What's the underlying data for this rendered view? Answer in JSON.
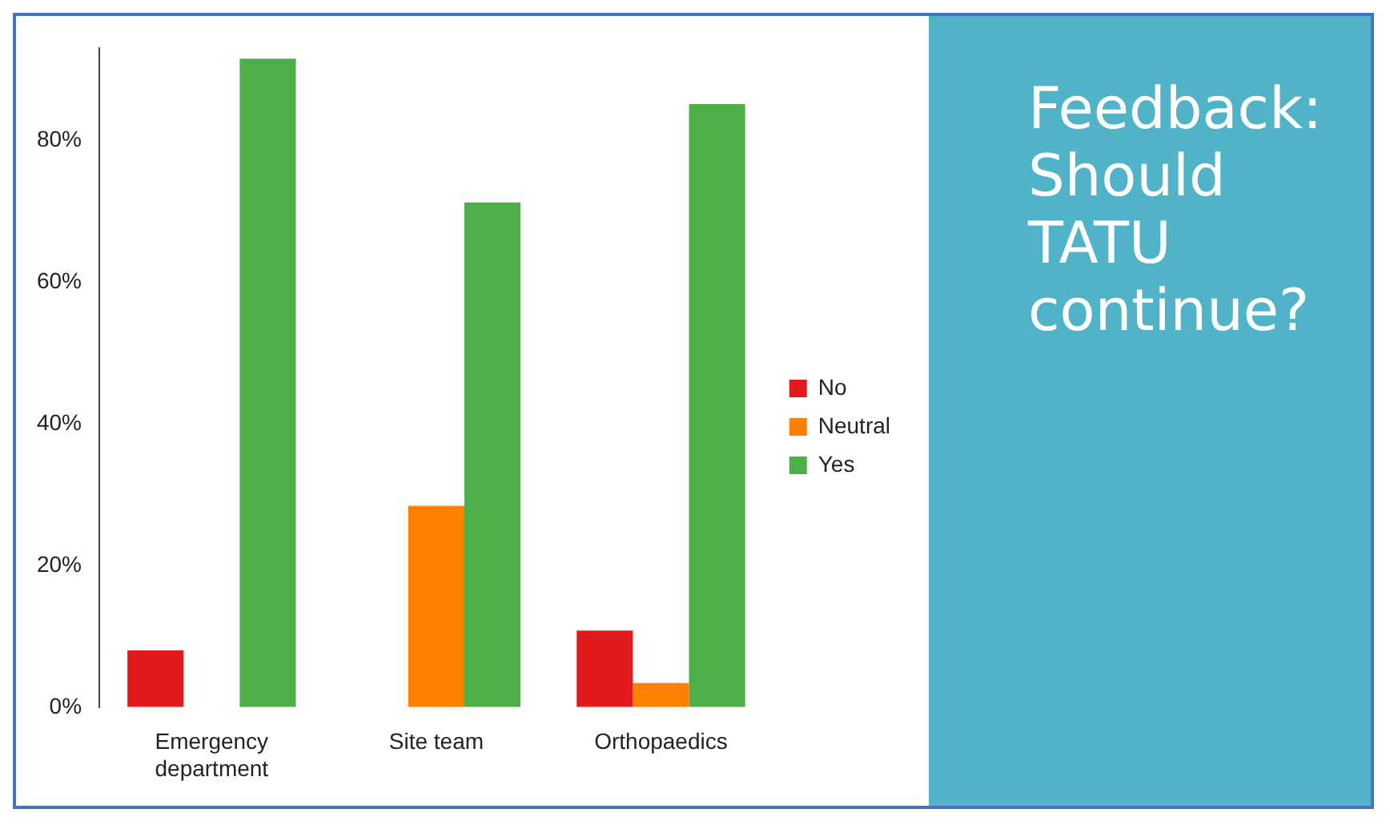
{
  "chart_data": {
    "type": "bar",
    "title": "Feedback: Should TATU continue?",
    "categories": [
      "Emergency department",
      "Site team",
      "Orthopaedics"
    ],
    "series": [
      {
        "name": "No",
        "color": "#e31a1c",
        "values": [
          8.0,
          0,
          10.8
        ]
      },
      {
        "name": "Neutral",
        "color": "#ff7f00",
        "values": [
          0,
          28.4,
          3.4
        ]
      },
      {
        "name": "Yes",
        "color": "#4daf4a",
        "values": [
          91.5,
          71.2,
          85.1
        ]
      }
    ],
    "ylim": [
      0,
      93
    ],
    "yticks": [
      {
        "value": 0,
        "label": "0%"
      },
      {
        "value": 20,
        "label": "20%"
      },
      {
        "value": 40,
        "label": "40%"
      },
      {
        "value": 60,
        "label": "60%"
      },
      {
        "value": 80,
        "label": "80%"
      }
    ],
    "grid": false,
    "legend": "right"
  }
}
